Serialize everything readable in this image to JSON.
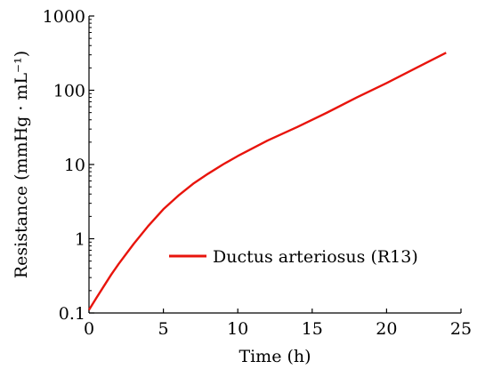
{
  "chart_data": {
    "type": "line",
    "xlabel": "Time (h)",
    "ylabel": "Resistance (mmHg · mL⁻¹)",
    "xlim": [
      0,
      25
    ],
    "ylim": [
      0.1,
      1000
    ],
    "yscale": "log",
    "x_ticks": [
      0,
      5,
      10,
      15,
      20,
      25
    ],
    "x_tick_labels": [
      "0",
      "5",
      "10",
      "15",
      "20",
      "25"
    ],
    "y_ticks": [
      0.1,
      1,
      10,
      100,
      1000
    ],
    "y_tick_labels": [
      "0.1",
      "1",
      "10",
      "100",
      "1000"
    ],
    "grid": false,
    "legend_position": "center-right",
    "series": [
      {
        "name": "Ductus arteriosus (R13)",
        "color": "#e8140c",
        "x": [
          0,
          0.5,
          1,
          1.5,
          2,
          3,
          4,
          5,
          6,
          7,
          8,
          9,
          10,
          12,
          14,
          16,
          18,
          20,
          22,
          24
        ],
        "y": [
          0.11,
          0.16,
          0.23,
          0.33,
          0.46,
          0.85,
          1.5,
          2.5,
          3.8,
          5.5,
          7.5,
          10,
          13,
          21,
          32,
          50,
          80,
          125,
          200,
          320
        ]
      }
    ]
  }
}
